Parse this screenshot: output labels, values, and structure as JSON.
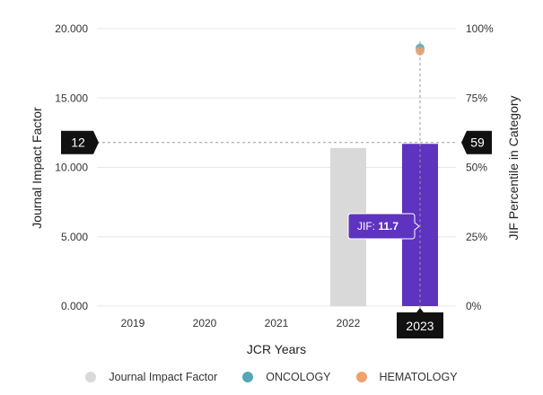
{
  "chart_data": {
    "type": "bar",
    "categories": [
      "2019",
      "2020",
      "2021",
      "2022",
      "2023"
    ],
    "xlabel": "JCR Years",
    "ylabel": "Journal Impact Factor",
    "ylabel_right": "JIF Percentile in Category",
    "ylim": [
      0,
      20
    ],
    "ylim_right": [
      0,
      100
    ],
    "left_ticks": [
      "0.000",
      "5.000",
      "10.000",
      "15.000",
      "20.000"
    ],
    "left_tick_values": [
      0,
      5,
      10,
      15,
      20
    ],
    "right_ticks": [
      "0%",
      "25%",
      "50%",
      "75%",
      "100%"
    ],
    "right_tick_values": [
      0,
      25,
      50,
      75,
      100
    ],
    "series": [
      {
        "name": "Journal Impact Factor",
        "type": "bar",
        "values": [
          null,
          null,
          null,
          11.4,
          11.7
        ]
      },
      {
        "name": "ONCOLOGY",
        "type": "scatter",
        "axis": "right",
        "values": [
          null,
          null,
          null,
          null,
          93
        ]
      },
      {
        "name": "HEMATOLOGY",
        "type": "scatter",
        "axis": "right",
        "values": [
          null,
          null,
          null,
          null,
          92
        ]
      }
    ],
    "selected_category": "2023",
    "crosshair_left_badge": "12",
    "crosshair_right_badge": "59",
    "crosshair_value": 11.8,
    "tooltip": {
      "label": "JIF: ",
      "value": "11.7"
    },
    "grid": true,
    "legend_position": "bottom"
  },
  "colors": {
    "bar_default": "#d9d9d9",
    "bar_selected": "#5e33bf",
    "oncology": "#52a8b7",
    "hematology": "#f0a16e",
    "badge": "#111111",
    "grid": "#e6e6e6",
    "crosshair": "#9a9a9a"
  }
}
